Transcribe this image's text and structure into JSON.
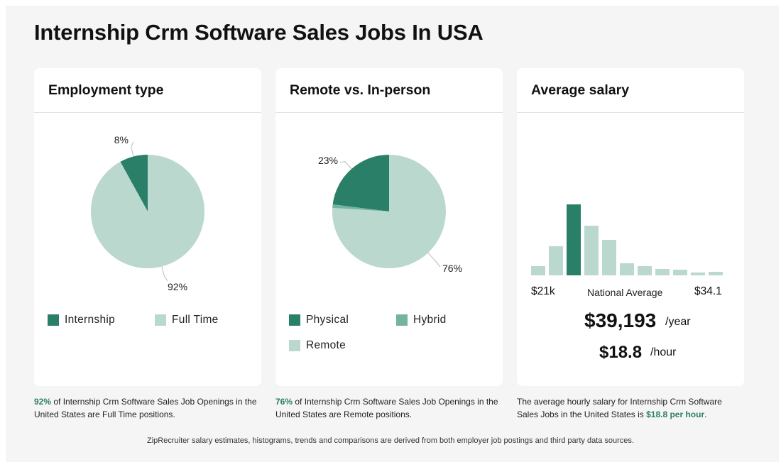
{
  "page": {
    "title": "Internship Crm Software Sales Jobs In USA",
    "footer": "ZipRecruiter salary estimates, histograms, trends and comparisons are derived from both employer job postings and third party data sources."
  },
  "colors": {
    "dark": "#2a7f68",
    "mid": "#74b3a1",
    "light": "#bad8ce"
  },
  "cards": {
    "employment": {
      "title": "Employment type",
      "legend": [
        {
          "label": "Internship",
          "color": "#2a7f68"
        },
        {
          "label": "Full Time",
          "color": "#bad8ce"
        }
      ],
      "caption_pct": "92%",
      "caption_text": " of Internship Crm Software Sales Job Openings in the United States are Full Time positions."
    },
    "remote": {
      "title": "Remote vs. In-person",
      "legend": [
        {
          "label": "Physical",
          "color": "#2a7f68"
        },
        {
          "label": "Hybrid",
          "color": "#74b3a1"
        },
        {
          "label": "Remote",
          "color": "#bad8ce"
        }
      ],
      "caption_pct": "76%",
      "caption_text": " of Internship Crm Software Sales Job Openings in the United States are Remote positions."
    },
    "salary": {
      "title": "Average salary",
      "min_label": "$21k",
      "mid_label": "National Average",
      "max_label": "$34.1",
      "yearly_value": "$39,193",
      "yearly_unit": "/year",
      "hourly_value": "$18.8",
      "hourly_unit": "/hour",
      "caption_text": "The average hourly salary for Internship Crm Software Sales Jobs in the United States is ",
      "caption_highlight": "$18.8 per hour",
      "caption_end": "."
    }
  },
  "chart_data": [
    {
      "type": "pie",
      "title": "Employment type",
      "labels": [
        "Internship",
        "Full Time"
      ],
      "values": [
        8,
        92
      ],
      "value_labels": [
        "8%",
        "92%"
      ],
      "colors": [
        "#2a7f68",
        "#bad8ce"
      ]
    },
    {
      "type": "pie",
      "title": "Remote vs. In-person",
      "labels": [
        "Physical",
        "Hybrid",
        "Remote"
      ],
      "values": [
        23,
        1,
        76
      ],
      "value_labels": [
        "23%",
        "",
        "76%"
      ],
      "colors": [
        "#2a7f68",
        "#74b3a1",
        "#bad8ce"
      ]
    },
    {
      "type": "bar",
      "title": "Average salary",
      "values": [
        13,
        41,
        100,
        70,
        50,
        17,
        13,
        9,
        8,
        4,
        5
      ],
      "highlight_index": 2,
      "colors": {
        "normal": "#bad8ce",
        "highlight": "#2a7f68"
      }
    }
  ]
}
